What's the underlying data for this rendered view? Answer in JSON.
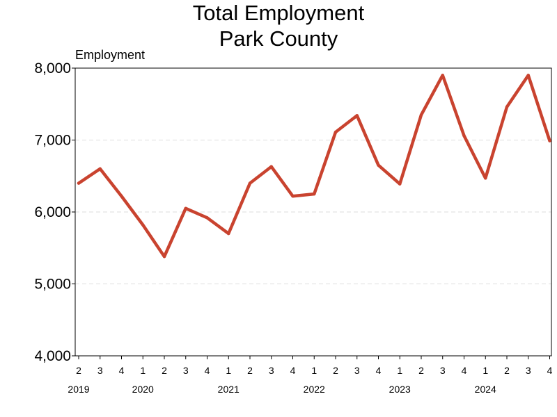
{
  "chart_data": {
    "type": "line",
    "title": "Total Employment",
    "subtitle": "Park County",
    "ylabel": "Employment",
    "xlabel": "",
    "ylim": [
      4000,
      8000
    ],
    "yticks": [
      "4,000",
      "5,000",
      "6,000",
      "7,000",
      "8,000"
    ],
    "ytick_values": [
      4000,
      5000,
      6000,
      7000,
      8000
    ],
    "grid": "horizontal dashed",
    "color": "#c9432f",
    "quarters": [
      "2",
      "3",
      "4",
      "1",
      "2",
      "3",
      "4",
      "1",
      "2",
      "3",
      "4",
      "1",
      "2",
      "3",
      "4",
      "1",
      "2",
      "3",
      "4",
      "1",
      "2",
      "3",
      "4"
    ],
    "years": [
      {
        "label": "2019",
        "index": 0
      },
      {
        "label": "2020",
        "index": 3
      },
      {
        "label": "2021",
        "index": 7
      },
      {
        "label": "2022",
        "index": 11
      },
      {
        "label": "2023",
        "index": 15
      },
      {
        "label": "2024",
        "index": 19
      }
    ],
    "series": [
      {
        "values": [
          6400,
          6600,
          6220,
          5820,
          5380,
          6050,
          5920,
          5700,
          6400,
          6630,
          6220,
          6250,
          7110,
          7340,
          6650,
          6390,
          7350,
          7900,
          7060,
          6470,
          7460,
          7900,
          6990
        ]
      }
    ]
  }
}
